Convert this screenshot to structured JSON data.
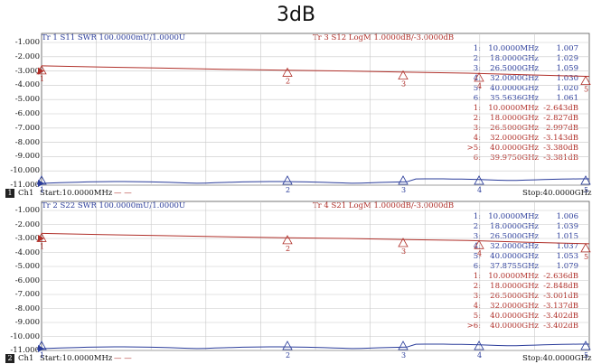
{
  "title": "3dB",
  "y_ticks": [
    "-1.000",
    "-2.000",
    "-3.000",
    "-4.000",
    "-5.000",
    "-6.000",
    "-7.000",
    "-8.000",
    "-9.000",
    "-10.000",
    "-11.000"
  ],
  "panels": [
    {
      "trace_a": "Tr 1  S11 SWR 100.0000mU/1.0000U",
      "trace_b": "Tr 3  S12 LogM 1.0000dB/-3.0000dB",
      "footer_channel": "Ch1",
      "footer_start": "Start:10.0000MHz",
      "footer_stop": "Stop:40.0000GHz",
      "channel_number": "1",
      "markers_a": [
        {
          "n": "1:",
          "f": "10.0000MHz",
          "v": "1.007"
        },
        {
          "n": "2:",
          "f": "18.0000GHz",
          "v": "1.029"
        },
        {
          "n": "3:",
          "f": "26.5000GHz",
          "v": "1.059"
        },
        {
          "n": "4:",
          "f": "32.0000GHz",
          "v": "1.030"
        },
        {
          "n": "5:",
          "f": "40.0000GHz",
          "v": "1.020"
        },
        {
          "n": "6:",
          "f": "35.5636GHz",
          "v": "1.061"
        }
      ],
      "markers_b": [
        {
          "n": "1:",
          "f": "10.0000MHz",
          "v": "-2.643dB"
        },
        {
          "n": "2:",
          "f": "18.0000GHz",
          "v": "-2.827dB"
        },
        {
          "n": "3:",
          "f": "26.5000GHz",
          "v": "-2.997dB"
        },
        {
          "n": "4:",
          "f": "32.0000GHz",
          "v": "-3.143dB"
        },
        {
          "n": ">5:",
          "f": "40.0000GHz",
          "v": "-3.380dB"
        },
        {
          "n": "6:",
          "f": "39.9750GHz",
          "v": "-3.381dB"
        }
      ]
    },
    {
      "trace_a": "Tr 2  S22 SWR 100.0000mU/1.0000U",
      "trace_b": "Tr 4  S21 LogM 1.0000dB/-3.0000dB",
      "footer_channel": "Ch1",
      "footer_start": "Start:10.0000MHz",
      "footer_stop": "Stop:40.0000GHz",
      "channel_number": "2",
      "markers_a": [
        {
          "n": "1:",
          "f": "10.0000MHz",
          "v": "1.006"
        },
        {
          "n": "2:",
          "f": "18.0000GHz",
          "v": "1.039"
        },
        {
          "n": "3:",
          "f": "26.5000GHz",
          "v": "1.015"
        },
        {
          "n": "4:",
          "f": "32.0000GHz",
          "v": "1.037"
        },
        {
          "n": "5:",
          "f": "40.0000GHz",
          "v": "1.053"
        },
        {
          "n": "6:",
          "f": "37.8755GHz",
          "v": "1.079"
        }
      ],
      "markers_b": [
        {
          "n": "1:",
          "f": "10.0000MHz",
          "v": "-2.636dB"
        },
        {
          "n": "2:",
          "f": "18.0000GHz",
          "v": "-2.848dB"
        },
        {
          "n": "3:",
          "f": "26.5000GHz",
          "v": "-3.001dB"
        },
        {
          "n": "4:",
          "f": "32.0000GHz",
          "v": "-3.137dB"
        },
        {
          "n": "5:",
          "f": "40.0000GHz",
          "v": "-3.402dB"
        },
        {
          "n": ">6:",
          "f": "40.0000GHz",
          "v": "-3.402dB"
        }
      ]
    }
  ],
  "colors": {
    "swr": "#2a3c9a",
    "logm": "#b0302a",
    "grid": "#c8c8c8"
  }
}
